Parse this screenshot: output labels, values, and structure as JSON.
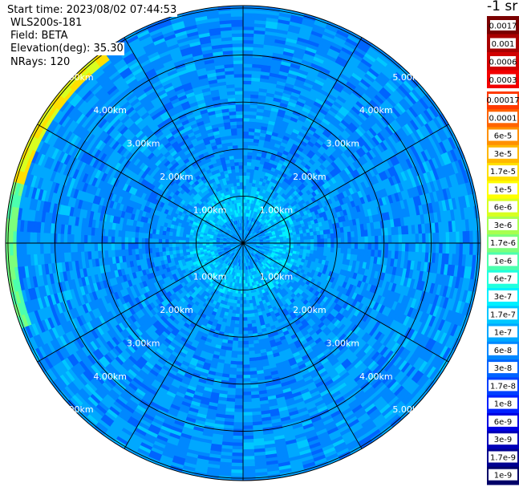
{
  "header": {
    "start_time": "Start time: 2023/08/02 07:44:53",
    "instrument": "WLS200s-181",
    "field": "Field: BETA",
    "elevation": "Elevation(deg): 35.30",
    "nrays": "NRays: 120"
  },
  "colorbar": {
    "title": "-1 sr",
    "upper_levels": [
      {
        "label": "0.0017",
        "color": "#7a0000"
      },
      {
        "label": "0.001",
        "color": "#a80000"
      },
      {
        "label": "0.0006",
        "color": "#d10000"
      },
      {
        "label": "0.0003",
        "color": "#f20000"
      }
    ],
    "levels": [
      {
        "label": "0.00017",
        "color": "#ff3a00"
      },
      {
        "label": "0.0001",
        "color": "#ff6400"
      },
      {
        "label": "6e-5",
        "color": "#ff9000"
      },
      {
        "label": "3e-5",
        "color": "#ffb800"
      },
      {
        "label": "1.7e-5",
        "color": "#ffe000"
      },
      {
        "label": "1e-5",
        "color": "#ffff00"
      },
      {
        "label": "6e-6",
        "color": "#d8ff20"
      },
      {
        "label": "3e-6",
        "color": "#a8ff50"
      },
      {
        "label": "1.7e-6",
        "color": "#7cff7c"
      },
      {
        "label": "1e-6",
        "color": "#4cffae"
      },
      {
        "label": "6e-7",
        "color": "#20ffde"
      },
      {
        "label": "3e-7",
        "color": "#00f0ff"
      },
      {
        "label": "1.7e-7",
        "color": "#00c8ff"
      },
      {
        "label": "1e-7",
        "color": "#00a8ff"
      },
      {
        "label": "6e-8",
        "color": "#0088ff"
      },
      {
        "label": "3e-8",
        "color": "#0064ff"
      },
      {
        "label": "1.7e-8",
        "color": "#0040ff"
      },
      {
        "label": "1e-8",
        "color": "#0020ff"
      },
      {
        "label": "6e-9",
        "color": "#0000e0"
      },
      {
        "label": "3e-9",
        "color": "#0000b8"
      },
      {
        "label": "1.7e-9",
        "color": "#000090"
      },
      {
        "label": "1e-9",
        "color": "#000068"
      }
    ]
  },
  "chart_data": {
    "type": "heatmap",
    "projection": "polar (PPI)",
    "field": "BETA",
    "elevation_deg": 35.3,
    "nrays": 120,
    "range_rings_km": [
      1.0,
      2.0,
      3.0,
      4.0,
      5.0
    ],
    "range_ring_labels": [
      "1.00km",
      "2.00km",
      "3.00km",
      "4.00km",
      "5.00km"
    ],
    "max_range_km": 5.05,
    "azimuth_spokes_deg": [
      0,
      30,
      60,
      90,
      120,
      150,
      180,
      210,
      240,
      270,
      300,
      330
    ],
    "value_description": "backscatter mostly 6e-8 to 3e-7; 1e-6 to 3e-6 near 1 km ring; edge to 1e-5 at west-northwest"
  }
}
